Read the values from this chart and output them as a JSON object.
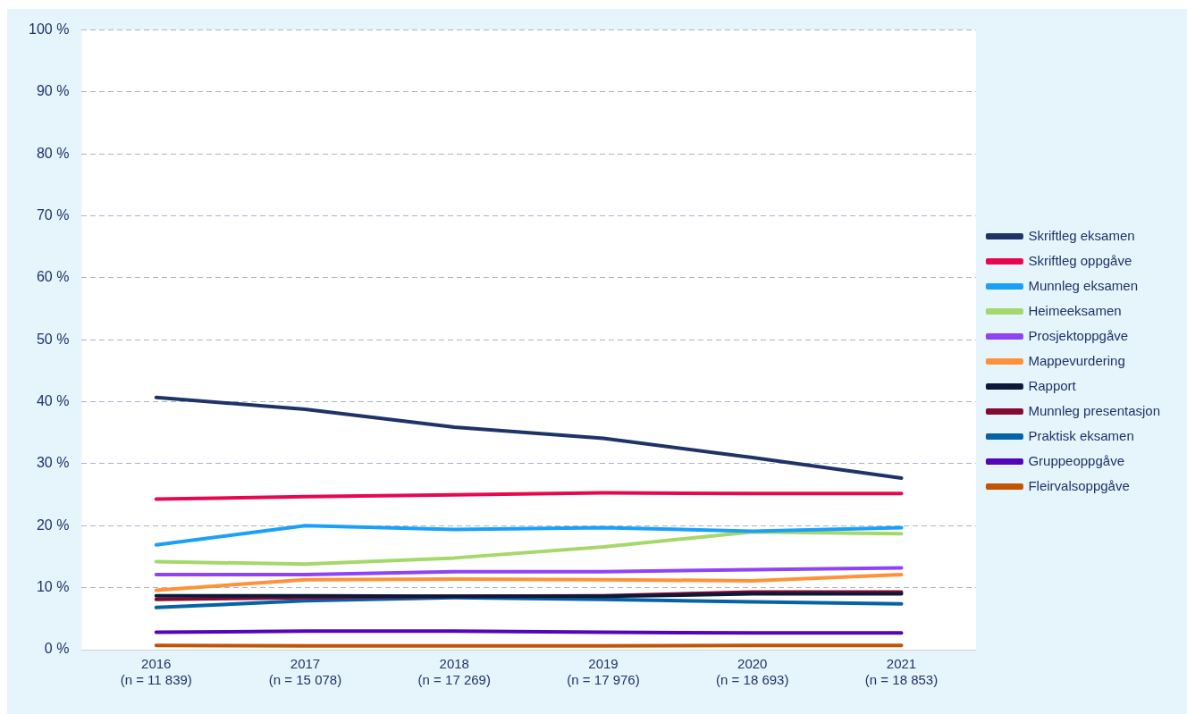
{
  "chart_data": {
    "type": "line",
    "categories": [
      "2016\n(n = 11 839)",
      "2017\n(n = 15 078)",
      "2018\n(n = 17 269)",
      "2019\n(n = 17 976)",
      "2020\n(n = 18 693)",
      "2021\n(n = 18 853)"
    ],
    "ylim": [
      0,
      100
    ],
    "yticks": [
      {
        "value": 0,
        "label": "0 %"
      },
      {
        "value": 10,
        "label": "10 %"
      },
      {
        "value": 20,
        "label": "20 %"
      },
      {
        "value": 30,
        "label": "30 %"
      },
      {
        "value": 40,
        "label": "40 %"
      },
      {
        "value": 50,
        "label": "50 %"
      },
      {
        "value": 60,
        "label": "60 %"
      },
      {
        "value": 70,
        "label": "70 %"
      },
      {
        "value": 80,
        "label": "80 %"
      },
      {
        "value": 90,
        "label": "90 %"
      },
      {
        "value": 100,
        "label": "100 %"
      }
    ],
    "grid": "y",
    "legend": "right",
    "marker": "none",
    "line_style": "solid",
    "series": [
      {
        "name": "Skriftleg eksamen",
        "color": "#1f3368",
        "values": [
          40.7,
          38.8,
          35.9,
          34.1,
          31.0,
          27.7
        ]
      },
      {
        "name": "Skriftleg oppgåve",
        "color": "#e8074f",
        "values": [
          24.3,
          24.7,
          25.0,
          25.3,
          25.2,
          25.2
        ]
      },
      {
        "name": "Munnleg eksamen",
        "color": "#1aa0f8",
        "values": [
          16.9,
          20.0,
          19.4,
          19.7,
          19.1,
          19.7
        ]
      },
      {
        "name": "Heimeeksamen",
        "color": "#a5d86a",
        "values": [
          14.2,
          13.8,
          14.8,
          16.6,
          19.0,
          18.7
        ]
      },
      {
        "name": "Prosjektoppgåve",
        "color": "#8e44f4",
        "values": [
          12.1,
          12.1,
          12.6,
          12.6,
          12.9,
          13.2
        ]
      },
      {
        "name": "Mappevurdering",
        "color": "#ff9238",
        "values": [
          9.6,
          11.3,
          11.4,
          11.3,
          11.1,
          12.1
        ]
      },
      {
        "name": "Rapport",
        "color": "#0e1838",
        "values": [
          8.7,
          8.7,
          8.6,
          8.6,
          9.0,
          9.0
        ]
      },
      {
        "name": "Munnleg presentasjon",
        "color": "#860a30",
        "values": [
          8.1,
          8.4,
          8.6,
          8.7,
          9.3,
          9.3
        ]
      },
      {
        "name": "Praktisk eksamen",
        "color": "#0662a6",
        "values": [
          6.8,
          7.9,
          8.4,
          8.1,
          7.7,
          7.4
        ]
      },
      {
        "name": "Gruppeoppgåve",
        "color": "#5405b8",
        "values": [
          2.8,
          3.0,
          3.0,
          2.8,
          2.7,
          2.7
        ]
      },
      {
        "name": "Fleirvalsoppgåve",
        "color": "#c25404",
        "values": [
          0.7,
          0.6,
          0.6,
          0.6,
          0.7,
          0.7
        ]
      }
    ]
  }
}
